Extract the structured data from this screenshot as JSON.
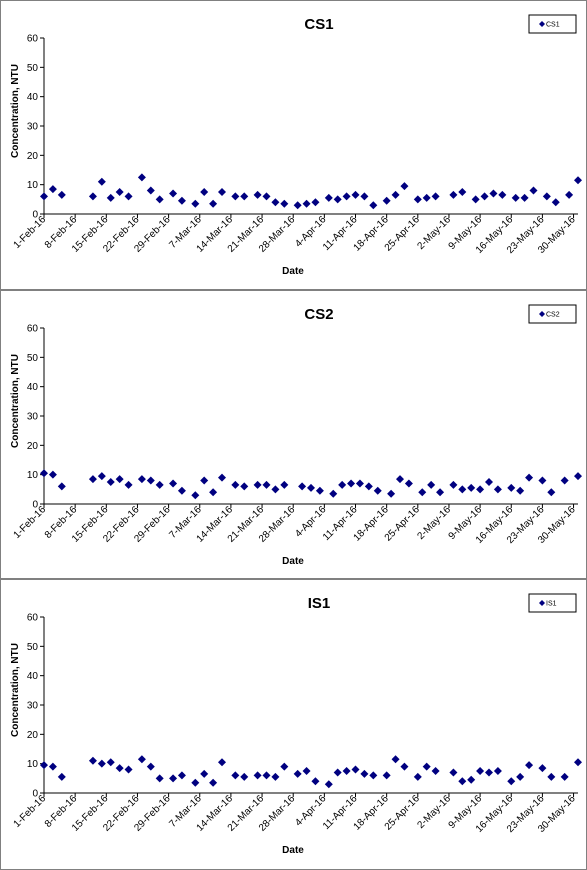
{
  "chart_data": [
    {
      "type": "scatter",
      "title": "CS1",
      "xlabel": "Date",
      "ylabel": "Concentration, NTU",
      "ylim": [
        0,
        60
      ],
      "yticks": [
        0,
        10,
        20,
        30,
        40,
        50,
        60
      ],
      "xlim": [
        "2016-02-01",
        "2016-05-31"
      ],
      "xtick_labels": [
        "1-Feb-16",
        "8-Feb-16",
        "15-Feb-16",
        "22-Feb-16",
        "29-Feb-16",
        "7-Mar-16",
        "14-Mar-16",
        "21-Mar-16",
        "28-Mar-16",
        "4-Apr-16",
        "11-Apr-16",
        "18-Apr-16",
        "25-Apr-16",
        "2-May-16",
        "9-May-16",
        "16-May-16",
        "23-May-16",
        "30-May-16"
      ],
      "legend_position": "top-right",
      "grid": false,
      "marker": "diamond",
      "color": "#000080",
      "series": [
        {
          "name": "CS1",
          "points": [
            [
              "2016-02-01",
              6
            ],
            [
              "2016-02-03",
              8.5
            ],
            [
              "2016-02-05",
              6.5
            ],
            [
              "2016-02-12",
              6
            ],
            [
              "2016-02-14",
              11
            ],
            [
              "2016-02-16",
              5.5
            ],
            [
              "2016-02-18",
              7.5
            ],
            [
              "2016-02-20",
              6
            ],
            [
              "2016-02-23",
              12.5
            ],
            [
              "2016-02-25",
              8
            ],
            [
              "2016-02-27",
              5
            ],
            [
              "2016-03-01",
              7
            ],
            [
              "2016-03-03",
              4.5
            ],
            [
              "2016-03-06",
              3.5
            ],
            [
              "2016-03-08",
              7.5
            ],
            [
              "2016-03-10",
              3.5
            ],
            [
              "2016-03-12",
              7.5
            ],
            [
              "2016-03-15",
              6
            ],
            [
              "2016-03-17",
              6
            ],
            [
              "2016-03-20",
              6.5
            ],
            [
              "2016-03-22",
              6
            ],
            [
              "2016-03-24",
              4
            ],
            [
              "2016-03-26",
              3.5
            ],
            [
              "2016-03-29",
              3
            ],
            [
              "2016-03-31",
              3.5
            ],
            [
              "2016-04-02",
              4
            ],
            [
              "2016-04-05",
              5.5
            ],
            [
              "2016-04-07",
              5
            ],
            [
              "2016-04-09",
              6
            ],
            [
              "2016-04-11",
              6.5
            ],
            [
              "2016-04-13",
              6
            ],
            [
              "2016-04-15",
              3
            ],
            [
              "2016-04-18",
              4.5
            ],
            [
              "2016-04-20",
              6.5
            ],
            [
              "2016-04-22",
              9.5
            ],
            [
              "2016-04-25",
              5
            ],
            [
              "2016-04-27",
              5.5
            ],
            [
              "2016-04-29",
              6
            ],
            [
              "2016-05-03",
              6.5
            ],
            [
              "2016-05-05",
              7.5
            ],
            [
              "2016-05-08",
              5
            ],
            [
              "2016-05-10",
              6
            ],
            [
              "2016-05-12",
              7
            ],
            [
              "2016-05-14",
              6.5
            ],
            [
              "2016-05-17",
              5.5
            ],
            [
              "2016-05-19",
              5.5
            ],
            [
              "2016-05-21",
              8
            ],
            [
              "2016-05-24",
              6
            ],
            [
              "2016-05-26",
              4
            ],
            [
              "2016-05-29",
              6.5
            ],
            [
              "2016-05-31",
              11.5
            ]
          ]
        }
      ]
    },
    {
      "type": "scatter",
      "title": "CS2",
      "xlabel": "Date",
      "ylabel": "Concentration, NTU",
      "ylim": [
        0,
        60
      ],
      "yticks": [
        0,
        10,
        20,
        30,
        40,
        50,
        60
      ],
      "xlim": [
        "2016-02-01",
        "2016-05-31"
      ],
      "xtick_labels": [
        "1-Feb-16",
        "8-Feb-16",
        "15-Feb-16",
        "22-Feb-16",
        "29-Feb-16",
        "7-Mar-16",
        "14-Mar-16",
        "21-Mar-16",
        "28-Mar-16",
        "4-Apr-16",
        "11-Apr-16",
        "18-Apr-16",
        "25-Apr-16",
        "2-May-16",
        "9-May-16",
        "16-May-16",
        "23-May-16",
        "30-May-16"
      ],
      "legend_position": "top-right",
      "grid": false,
      "marker": "diamond",
      "color": "#000080",
      "series": [
        {
          "name": "CS2",
          "points": [
            [
              "2016-02-01",
              10.5
            ],
            [
              "2016-02-03",
              10
            ],
            [
              "2016-02-05",
              6
            ],
            [
              "2016-02-12",
              8.5
            ],
            [
              "2016-02-14",
              9.5
            ],
            [
              "2016-02-16",
              7.5
            ],
            [
              "2016-02-18",
              8.5
            ],
            [
              "2016-02-20",
              6.5
            ],
            [
              "2016-02-23",
              8.5
            ],
            [
              "2016-02-25",
              8
            ],
            [
              "2016-02-27",
              6.5
            ],
            [
              "2016-03-01",
              7
            ],
            [
              "2016-03-03",
              4.5
            ],
            [
              "2016-03-06",
              3
            ],
            [
              "2016-03-08",
              8
            ],
            [
              "2016-03-10",
              4
            ],
            [
              "2016-03-12",
              9
            ],
            [
              "2016-03-15",
              6.5
            ],
            [
              "2016-03-17",
              6
            ],
            [
              "2016-03-20",
              6.5
            ],
            [
              "2016-03-22",
              6.5
            ],
            [
              "2016-03-24",
              5
            ],
            [
              "2016-03-26",
              6.5
            ],
            [
              "2016-03-30",
              6
            ],
            [
              "2016-04-01",
              5.5
            ],
            [
              "2016-04-03",
              4.5
            ],
            [
              "2016-04-06",
              3.5
            ],
            [
              "2016-04-08",
              6.5
            ],
            [
              "2016-04-10",
              7
            ],
            [
              "2016-04-12",
              7
            ],
            [
              "2016-04-14",
              6
            ],
            [
              "2016-04-16",
              4.5
            ],
            [
              "2016-04-19",
              3.5
            ],
            [
              "2016-04-21",
              8.5
            ],
            [
              "2016-04-23",
              7
            ],
            [
              "2016-04-26",
              4
            ],
            [
              "2016-04-28",
              6.5
            ],
            [
              "2016-04-30",
              4
            ],
            [
              "2016-05-03",
              6.5
            ],
            [
              "2016-05-05",
              5
            ],
            [
              "2016-05-07",
              5.5
            ],
            [
              "2016-05-09",
              5
            ],
            [
              "2016-05-11",
              7.5
            ],
            [
              "2016-05-13",
              5
            ],
            [
              "2016-05-16",
              5.5
            ],
            [
              "2016-05-18",
              4.5
            ],
            [
              "2016-05-20",
              9
            ],
            [
              "2016-05-23",
              8
            ],
            [
              "2016-05-25",
              4
            ],
            [
              "2016-05-28",
              8
            ],
            [
              "2016-05-31",
              9.5
            ]
          ]
        }
      ]
    },
    {
      "type": "scatter",
      "title": "IS1",
      "xlabel": "Date",
      "ylabel": "Concentration, NTU",
      "ylim": [
        0,
        60
      ],
      "yticks": [
        0,
        10,
        20,
        30,
        40,
        50,
        60
      ],
      "xlim": [
        "2016-02-01",
        "2016-05-31"
      ],
      "xtick_labels": [
        "1-Feb-16",
        "8-Feb-16",
        "15-Feb-16",
        "22-Feb-16",
        "29-Feb-16",
        "7-Mar-16",
        "14-Mar-16",
        "21-Mar-16",
        "28-Mar-16",
        "4-Apr-16",
        "11-Apr-16",
        "18-Apr-16",
        "25-Apr-16",
        "2-May-16",
        "9-May-16",
        "16-May-16",
        "23-May-16",
        "30-May-16"
      ],
      "legend_position": "top-right",
      "grid": false,
      "marker": "diamond",
      "color": "#000080",
      "series": [
        {
          "name": "IS1",
          "points": [
            [
              "2016-02-01",
              9.5
            ],
            [
              "2016-02-03",
              9
            ],
            [
              "2016-02-05",
              5.5
            ],
            [
              "2016-02-12",
              11
            ],
            [
              "2016-02-14",
              10
            ],
            [
              "2016-02-16",
              10.5
            ],
            [
              "2016-02-18",
              8.5
            ],
            [
              "2016-02-20",
              8
            ],
            [
              "2016-02-23",
              11.5
            ],
            [
              "2016-02-25",
              9
            ],
            [
              "2016-02-27",
              5
            ],
            [
              "2016-03-01",
              5
            ],
            [
              "2016-03-03",
              6
            ],
            [
              "2016-03-06",
              3.5
            ],
            [
              "2016-03-08",
              6.5
            ],
            [
              "2016-03-10",
              3.5
            ],
            [
              "2016-03-12",
              10.5
            ],
            [
              "2016-03-15",
              6
            ],
            [
              "2016-03-17",
              5.5
            ],
            [
              "2016-03-20",
              6
            ],
            [
              "2016-03-22",
              6
            ],
            [
              "2016-03-24",
              5.5
            ],
            [
              "2016-03-26",
              9
            ],
            [
              "2016-03-29",
              6.5
            ],
            [
              "2016-03-31",
              7.5
            ],
            [
              "2016-04-02",
              4
            ],
            [
              "2016-04-05",
              3
            ],
            [
              "2016-04-07",
              7
            ],
            [
              "2016-04-09",
              7.5
            ],
            [
              "2016-04-11",
              8
            ],
            [
              "2016-04-13",
              6.5
            ],
            [
              "2016-04-15",
              6
            ],
            [
              "2016-04-18",
              6
            ],
            [
              "2016-04-20",
              11.5
            ],
            [
              "2016-04-22",
              9
            ],
            [
              "2016-04-25",
              5.5
            ],
            [
              "2016-04-27",
              9
            ],
            [
              "2016-04-29",
              7.5
            ],
            [
              "2016-05-03",
              7
            ],
            [
              "2016-05-05",
              4
            ],
            [
              "2016-05-07",
              4.5
            ],
            [
              "2016-05-09",
              7.5
            ],
            [
              "2016-05-11",
              7
            ],
            [
              "2016-05-13",
              7.5
            ],
            [
              "2016-05-16",
              4
            ],
            [
              "2016-05-18",
              5.5
            ],
            [
              "2016-05-20",
              9.5
            ],
            [
              "2016-05-23",
              8.5
            ],
            [
              "2016-05-25",
              5.5
            ],
            [
              "2016-05-28",
              5.5
            ],
            [
              "2016-05-31",
              10.5
            ]
          ]
        }
      ]
    }
  ]
}
